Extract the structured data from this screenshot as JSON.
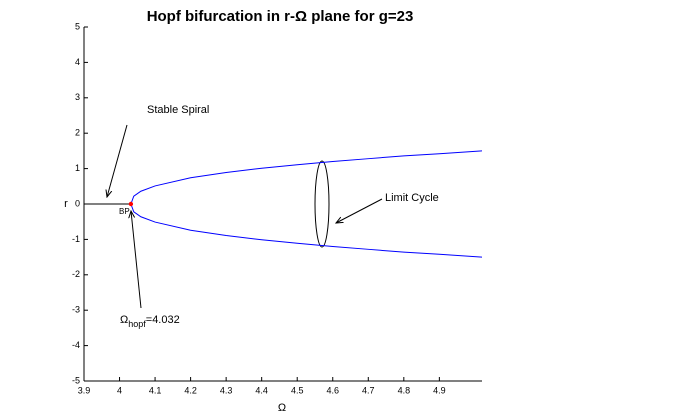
{
  "chart_data": {
    "type": "line",
    "title": "Hopf bifurcation in r-Ω plane for g=23",
    "x_label": "Ω",
    "y_label": "r",
    "x": [
      3.9,
      4.032,
      4.04,
      4.06,
      4.1,
      4.2,
      4.3,
      4.4,
      4.5,
      4.6,
      4.7,
      4.8,
      4.9,
      5.02
    ],
    "series": [
      {
        "color": "#000000",
        "values": [
          0,
          0,
          null,
          null,
          null,
          null,
          null,
          null,
          null,
          null,
          null,
          null,
          null,
          null
        ]
      },
      {
        "color": "#0000ff",
        "values": [
          null,
          0,
          0.22,
          0.36,
          0.51,
          0.74,
          0.89,
          1.01,
          1.11,
          1.2,
          1.28,
          1.36,
          1.42,
          1.5
        ]
      },
      {
        "color": "#0000ff",
        "values": [
          null,
          0,
          -0.22,
          -0.36,
          -0.51,
          -0.74,
          -0.89,
          -1.01,
          -1.11,
          -1.2,
          -1.28,
          -1.36,
          -1.42,
          -1.5
        ]
      }
    ],
    "bifurcation_point": {
      "x": 4.032,
      "y": 0,
      "color": "#ff0000",
      "label": "BP"
    },
    "annotations": {
      "stable": "Stable Spiral",
      "limit_cycle": "Limit Cycle",
      "hopf_symbol": "Ω",
      "hopf_sub": "hopf",
      "hopf_value": "=4.032"
    },
    "xlim": [
      3.9,
      5.02
    ],
    "ylim": [
      -5,
      5
    ],
    "xticks": [
      3.9,
      4,
      4.1,
      4.2,
      4.3,
      4.4,
      4.5,
      4.6,
      4.7,
      4.8,
      4.9
    ],
    "yticks": [
      -5,
      -4,
      -3,
      -2,
      -1,
      0,
      1,
      2,
      3,
      4,
      5
    ]
  }
}
